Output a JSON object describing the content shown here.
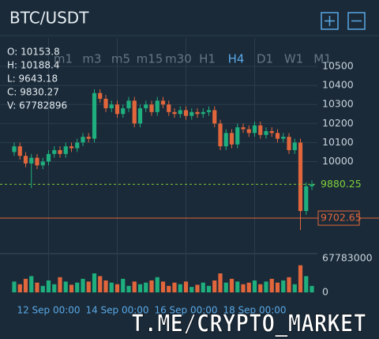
{
  "header": {
    "title": "BTC/USDT"
  },
  "info": [
    "O: 10153.8",
    "H: 10188.4",
    "L: 9643.18",
    "C: 9830.27",
    "V: 67782896"
  ],
  "timeframes": [
    "m1",
    "m3",
    "m5",
    "m15",
    "m30",
    "H1",
    "H4",
    "D1",
    "W1",
    "M1"
  ],
  "active_timeframe": 6,
  "watermark": "T.ME/CRYPTO_MARKET",
  "chart_data": {
    "type": "candlestick",
    "x": [
      null,
      null,
      null,
      null,
      null,
      null,
      "12 Sep 00:00",
      null,
      null,
      null,
      null,
      null,
      null,
      null,
      null,
      null,
      null,
      null,
      "14 Sep 00:00",
      null,
      null,
      null,
      null,
      null,
      null,
      null,
      null,
      null,
      null,
      null,
      "16 Sep 00:00",
      null,
      null,
      null,
      null,
      null,
      null,
      null,
      null,
      null,
      null,
      null,
      "18 Sep 00:00",
      null,
      null,
      null,
      null,
      null,
      null,
      null,
      null,
      null,
      null
    ],
    "open": [
      10050,
      10080,
      10030,
      9990,
      10020,
      9980,
      10000,
      10040,
      10060,
      10040,
      10080,
      10070,
      10100,
      10130,
      10120,
      10360,
      10330,
      10280,
      10300,
      10250,
      10280,
      10320,
      10200,
      10280,
      10300,
      10260,
      10320,
      10300,
      10260,
      10250,
      10270,
      10240,
      10260,
      10250,
      10260,
      10270,
      10200,
      10080,
      10150,
      10090,
      10180,
      10170,
      10150,
      10190,
      10140,
      10160,
      10150,
      10120,
      10130,
      10060,
      10100,
      9740,
      9870
    ],
    "high": [
      10100,
      10100,
      10050,
      10040,
      10040,
      10020,
      10060,
      10080,
      10080,
      10100,
      10100,
      10120,
      10150,
      10150,
      10380,
      10380,
      10350,
      10320,
      10320,
      10300,
      10340,
      10340,
      10300,
      10320,
      10320,
      10340,
      10340,
      10320,
      10280,
      10290,
      10290,
      10280,
      10280,
      10280,
      10290,
      10290,
      10220,
      10170,
      10170,
      10200,
      10200,
      10190,
      10210,
      10210,
      10180,
      10180,
      10170,
      10150,
      10150,
      10120,
      10120,
      9890,
      9900
    ],
    "low": [
      10030,
      10010,
      9970,
      9860,
      9960,
      9960,
      9980,
      10020,
      10020,
      10020,
      10050,
      10050,
      10080,
      10100,
      10100,
      10310,
      10260,
      10260,
      10230,
      10230,
      10260,
      10180,
      10180,
      10260,
      10240,
      10240,
      10280,
      10240,
      10230,
      10230,
      10220,
      10220,
      10230,
      10230,
      10240,
      10180,
      10060,
      10060,
      10070,
      10070,
      10150,
      10130,
      10130,
      10120,
      10120,
      10130,
      10100,
      10100,
      10040,
      10040,
      9640,
      9720,
      9850
    ],
    "close": [
      10080,
      10030,
      9990,
      10020,
      9980,
      10000,
      10040,
      10060,
      10040,
      10080,
      10070,
      10100,
      10130,
      10120,
      10360,
      10330,
      10280,
      10300,
      10250,
      10280,
      10320,
      10200,
      10280,
      10300,
      10260,
      10320,
      10300,
      10260,
      10250,
      10270,
      10240,
      10260,
      10250,
      10260,
      10270,
      10200,
      10080,
      10150,
      10090,
      10180,
      10170,
      10150,
      10190,
      10140,
      10160,
      10150,
      10120,
      10130,
      10060,
      10100,
      9740,
      9870,
      9880.25
    ],
    "up_color": "#1fae7e",
    "down_color": "#e2663c",
    "ylim": [
      9520,
      10600
    ],
    "yticks": [
      10000,
      10100,
      10200,
      10300,
      10400,
      10500
    ],
    "price_lines": [
      {
        "value": 9880.25,
        "color": "#7fd13b",
        "dashed": true
      },
      {
        "value": 9702.65,
        "color": "#e2663c",
        "dashed": false
      }
    ],
    "volume": {
      "values": [
        20000000,
        15000000,
        25000000,
        30000000,
        18000000,
        12000000,
        22000000,
        15000000,
        28000000,
        20000000,
        14000000,
        18000000,
        25000000,
        20000000,
        35000000,
        30000000,
        22000000,
        18000000,
        15000000,
        25000000,
        12000000,
        20000000,
        15000000,
        18000000,
        22000000,
        28000000,
        20000000,
        12000000,
        18000000,
        15000000,
        20000000,
        10000000,
        14000000,
        18000000,
        12000000,
        22000000,
        35000000,
        18000000,
        25000000,
        20000000,
        15000000,
        18000000,
        22000000,
        15000000,
        20000000,
        25000000,
        18000000,
        22000000,
        28000000,
        15000000,
        50000000,
        30000000,
        12000000
      ],
      "ylim": [
        0,
        70000000
      ],
      "yticks": [
        0,
        67783000
      ]
    }
  }
}
